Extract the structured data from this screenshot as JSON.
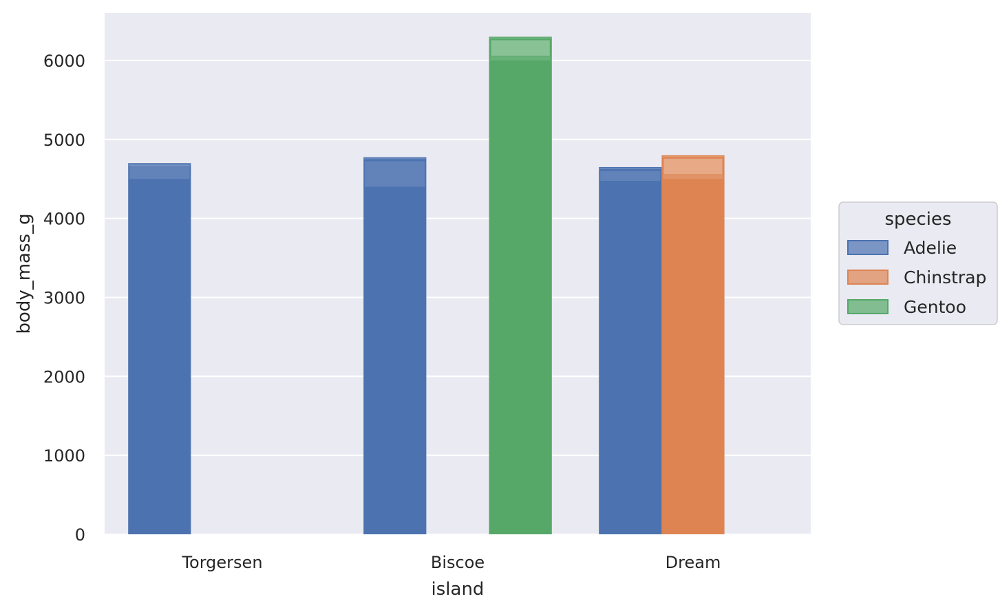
{
  "chart_data": {
    "type": "bar",
    "title": "",
    "xlabel": "island",
    "ylabel": "body_mass_g",
    "categories": [
      "Torgersen",
      "Biscoe",
      "Dream"
    ],
    "ylim": [
      0,
      6600
    ],
    "yticks": [
      0,
      1000,
      2000,
      3000,
      4000,
      5000,
      6000
    ],
    "ytick_labels": [
      "0",
      "1000",
      "2000",
      "3000",
      "4000",
      "5000",
      "6000"
    ],
    "grid": true,
    "legend": {
      "title": "species",
      "placement": "center-right"
    },
    "series": [
      {
        "name": "Adelie",
        "color": "#4c72b0",
        "values": [
          4700,
          4775,
          4650
        ],
        "band": [
          [
            4500,
            4675
          ],
          [
            4400,
            4725
          ],
          [
            4475,
            4600
          ]
        ]
      },
      {
        "name": "Chinstrap",
        "color": "#dd8452",
        "values": [
          null,
          null,
          4800
        ],
        "band": [
          null,
          null,
          [
            4500,
            4550
          ]
        ]
      },
      {
        "name": "Gentoo",
        "color": "#55a868",
        "values": [
          null,
          6300,
          null
        ],
        "band": [
          null,
          [
            6000,
            6050
          ],
          null
        ]
      }
    ]
  }
}
